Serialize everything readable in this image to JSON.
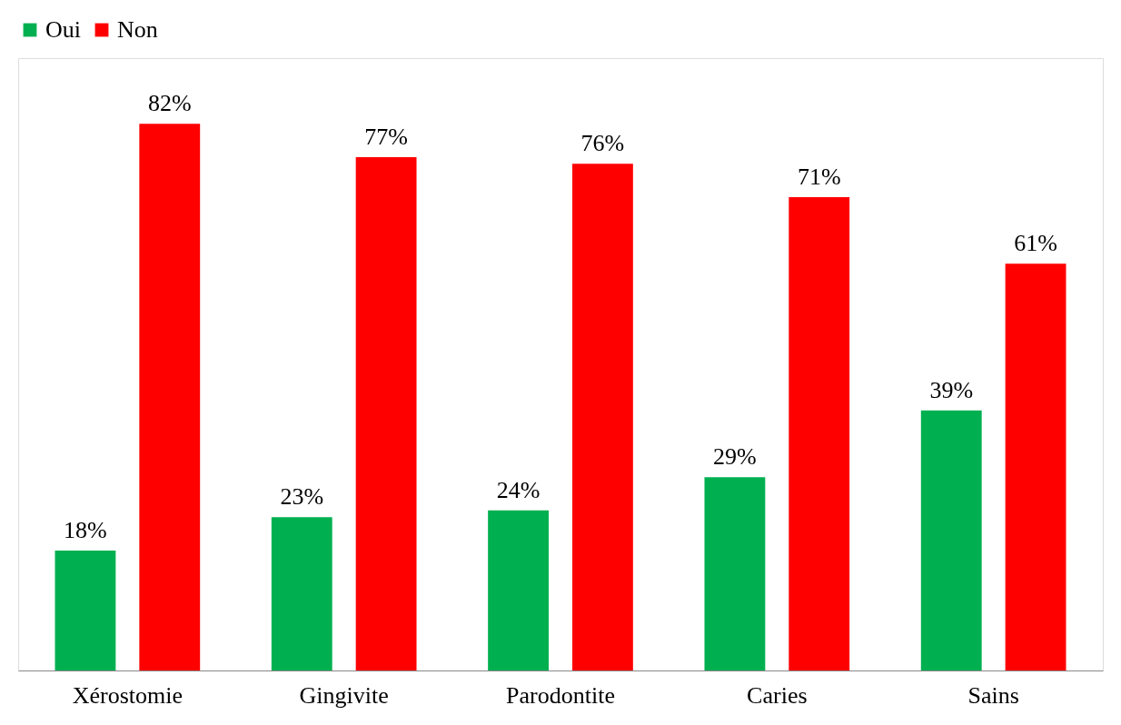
{
  "chart_data": {
    "type": "bar",
    "categories": [
      "Xérostomie",
      "Gingivite",
      "Parodontite",
      "Caries",
      "Sains"
    ],
    "series": [
      {
        "name": "Oui",
        "color": "#00b050",
        "values": [
          18,
          23,
          24,
          29,
          39
        ],
        "value_labels": [
          "18%",
          "23%",
          "24%",
          "29%",
          "39%"
        ]
      },
      {
        "name": "Non",
        "color": "#ff0000",
        "values": [
          82,
          77,
          76,
          71,
          61
        ],
        "value_labels": [
          "82%",
          "77%",
          "76%",
          "71%",
          "61%"
        ]
      }
    ],
    "legend": "top",
    "grid": false
  }
}
